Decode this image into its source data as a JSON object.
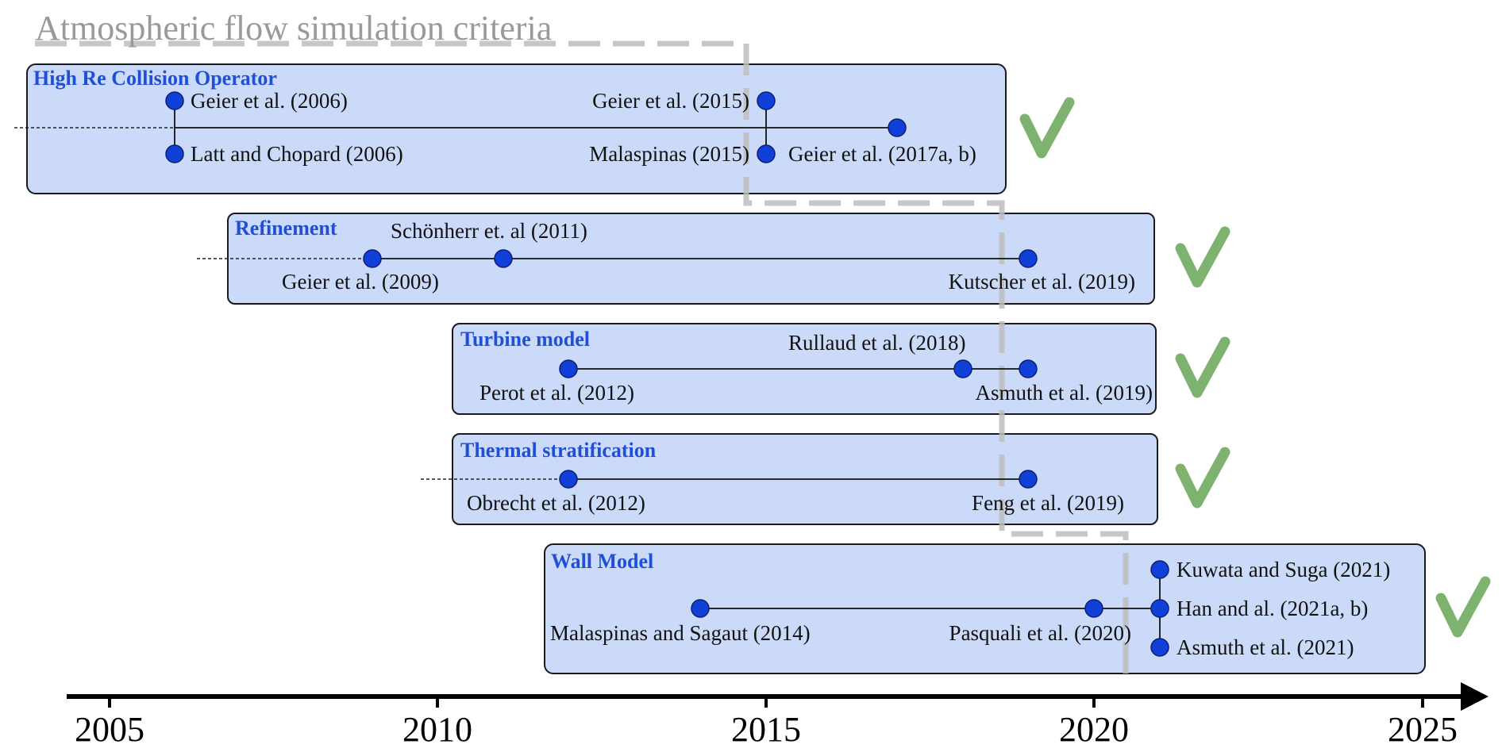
{
  "criteria_title": "Atmospheric flow simulation criteria",
  "colors": {
    "box_fill": "#ccdaf9",
    "box_stroke": "#1a1a1a",
    "title_blue": "#1f4fd6",
    "dot_blue": "#1040d8",
    "dot_stroke": "#0a1f70",
    "check_green": "#7db36f",
    "dash_grey": "#c8c8c8",
    "axis": "#000000",
    "title_grey": "#9a9a9a"
  },
  "axis": {
    "ticks": [
      "2005",
      "2010",
      "2015",
      "2020",
      "2025"
    ]
  },
  "groups": [
    {
      "title": "High Re Collision Operator",
      "has_check": true,
      "refs": [
        "Geier et al. (2006)",
        "Latt and Chopard (2006)",
        "Geier et al. (2015)",
        "Malaspinas (2015)",
        "Geier et al. (2017a, b)"
      ]
    },
    {
      "title": "Refinement",
      "has_check": true,
      "refs": [
        "Geier et al. (2009)",
        "Schönherr et. al (2011)",
        "Kutscher et al. (2019)"
      ]
    },
    {
      "title": "Turbine model",
      "has_check": true,
      "refs": [
        "Perot et al. (2012)",
        "Rullaud et al. (2018)",
        "Asmuth et al. (2019)"
      ]
    },
    {
      "title": "Thermal stratification",
      "has_check": true,
      "refs": [
        "Obrecht et al. (2012)",
        "Feng et al. (2019)"
      ]
    },
    {
      "title": "Wall Model",
      "has_check": true,
      "refs": [
        "Malaspinas and Sagaut (2014)",
        "Pasquali et al. (2020)",
        "Kuwata and Suga (2021)",
        "Han and al. (2021a, b)",
        "Asmuth et al. (2021)"
      ]
    }
  ]
}
